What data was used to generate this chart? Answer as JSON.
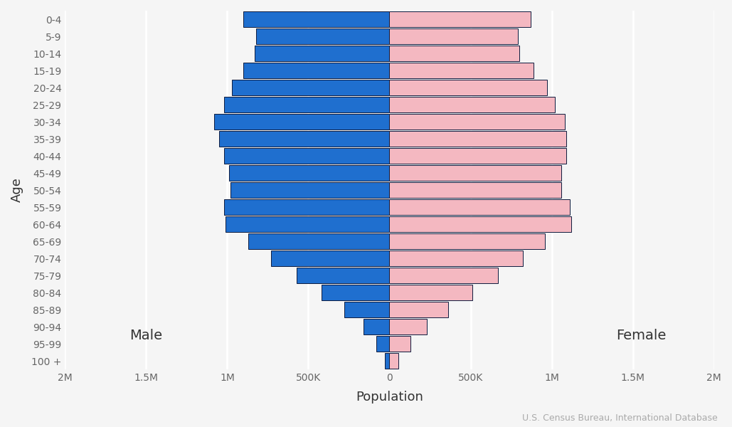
{
  "age_groups": [
    "0-4",
    "5-9",
    "10-14",
    "15-19",
    "20-24",
    "25-29",
    "30-34",
    "35-39",
    "40-44",
    "45-49",
    "50-54",
    "55-59",
    "60-64",
    "65-69",
    "70-74",
    "75-79",
    "80-84",
    "85-89",
    "90-94",
    "95-99",
    "100 +"
  ],
  "male": [
    900000,
    820000,
    830000,
    900000,
    970000,
    1020000,
    1080000,
    1050000,
    1020000,
    990000,
    980000,
    1020000,
    1010000,
    870000,
    730000,
    570000,
    420000,
    280000,
    160000,
    80000,
    30000
  ],
  "female": [
    870000,
    790000,
    800000,
    890000,
    970000,
    1020000,
    1080000,
    1090000,
    1090000,
    1060000,
    1060000,
    1110000,
    1120000,
    960000,
    820000,
    670000,
    510000,
    360000,
    230000,
    130000,
    55000
  ],
  "male_color": "#1f6fcf",
  "female_color": "#f4b8c1",
  "male_edge_color": "#0d1b3e",
  "female_edge_color": "#0d1b3e",
  "xlim": 2000000,
  "xlabel": "Population",
  "ylabel": "Age",
  "male_label": "Male",
  "female_label": "Female",
  "source_text": "U.S. Census Bureau, International Database",
  "background_color": "#f5f5f5",
  "grid_color": "#ffffff",
  "tick_label_color": "#666666",
  "axis_label_color": "#333333",
  "tick_positions": [
    -2000000,
    -1500000,
    -1000000,
    -500000,
    0,
    500000,
    1000000,
    1500000,
    2000000
  ],
  "tick_labels": [
    "2M",
    "1.5M",
    "1M",
    "500K",
    "0",
    "500K",
    "1M",
    "1.5M",
    "2M"
  ]
}
